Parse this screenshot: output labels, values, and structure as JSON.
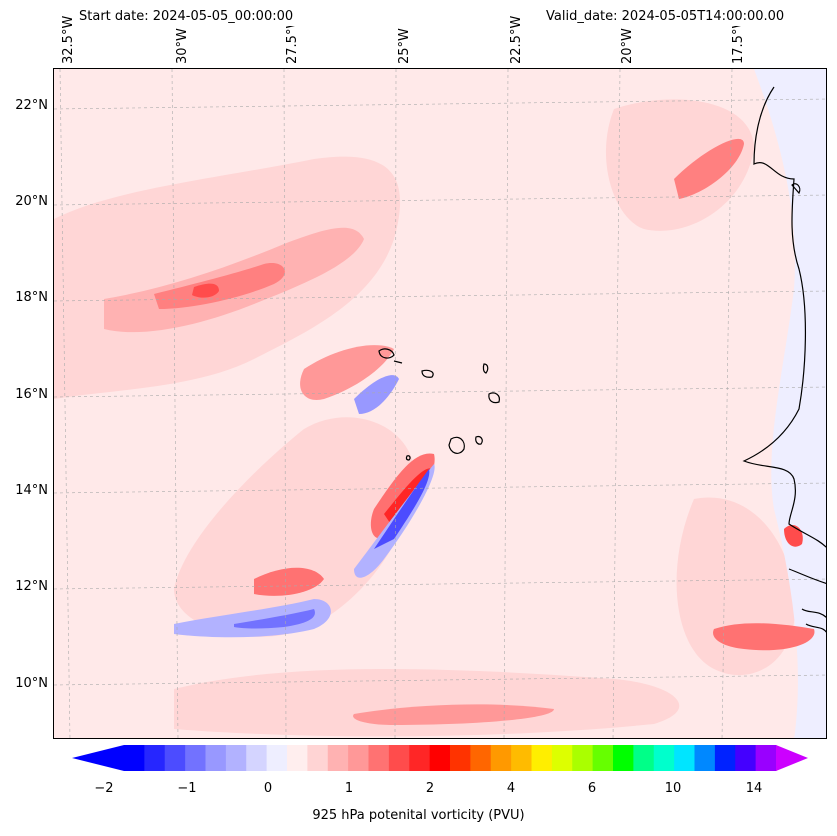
{
  "header": {
    "start_date": "Start date: 2024-05-05_00:00:00",
    "valid_date": "Valid_date: 2024-05-05T14:00:00.00"
  },
  "axes": {
    "lon_labels": [
      "32.5°W",
      "30°W",
      "27.5°W",
      "25°W",
      "22.5°W",
      "20°W",
      "17.5°W"
    ],
    "lat_labels": [
      "22°N",
      "20°N",
      "18°N",
      "16°N",
      "14°N",
      "12°N",
      "10°N"
    ]
  },
  "colorbar": {
    "label": "925 hPa potenital vorticity (PVU)",
    "tick_labels": [
      "−2",
      "−1",
      "0",
      "1",
      "2",
      "4",
      "6",
      "10",
      "14"
    ],
    "colors": [
      "#0000ff",
      "#2626ff",
      "#4c4cff",
      "#7272ff",
      "#9898ff",
      "#b2b2ff",
      "#d4d4ff",
      "#eeeeff",
      "#ffeeee",
      "#ffd4d4",
      "#ffb2b2",
      "#ff9898",
      "#ff7272",
      "#ff4c4c",
      "#ff2626",
      "#ff0000",
      "#ff3300",
      "#ff6600",
      "#ff9900",
      "#ffbb00",
      "#ffee00",
      "#ddff00",
      "#aaff00",
      "#66ff00",
      "#00ff00",
      "#00ff88",
      "#00ffcc",
      "#00e5ff",
      "#0088ff",
      "#0022ff",
      "#4400ff",
      "#9900ff"
    ],
    "extend_low_color": "#0000ff",
    "extend_high_color": "#cc00ff"
  }
}
